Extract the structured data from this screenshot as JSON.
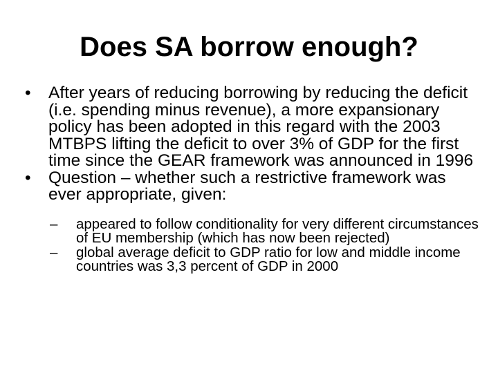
{
  "slide": {
    "title": "Does SA borrow enough?",
    "bullets": [
      {
        "marker": "•",
        "text": "After years of reducing borrowing by reducing the deficit (i.e. spending minus revenue), a more expansionary policy has been adopted in this regard with the 2003 MTBPS lifting the deficit to over 3% of GDP for the first time since the GEAR framework was announced in 1996"
      },
      {
        "marker": "•",
        "text": "Question – whether such a restrictive framework was ever appropriate, given:"
      }
    ],
    "sub_bullets": [
      {
        "marker": "–",
        "text": "appeared to follow conditionality for very different circumstances of EU membership (which has now been rejected)"
      },
      {
        "marker": "–",
        "text": "global average deficit to GDP ratio for low and middle income countries was 3,3 percent of GDP in 2000"
      }
    ]
  }
}
